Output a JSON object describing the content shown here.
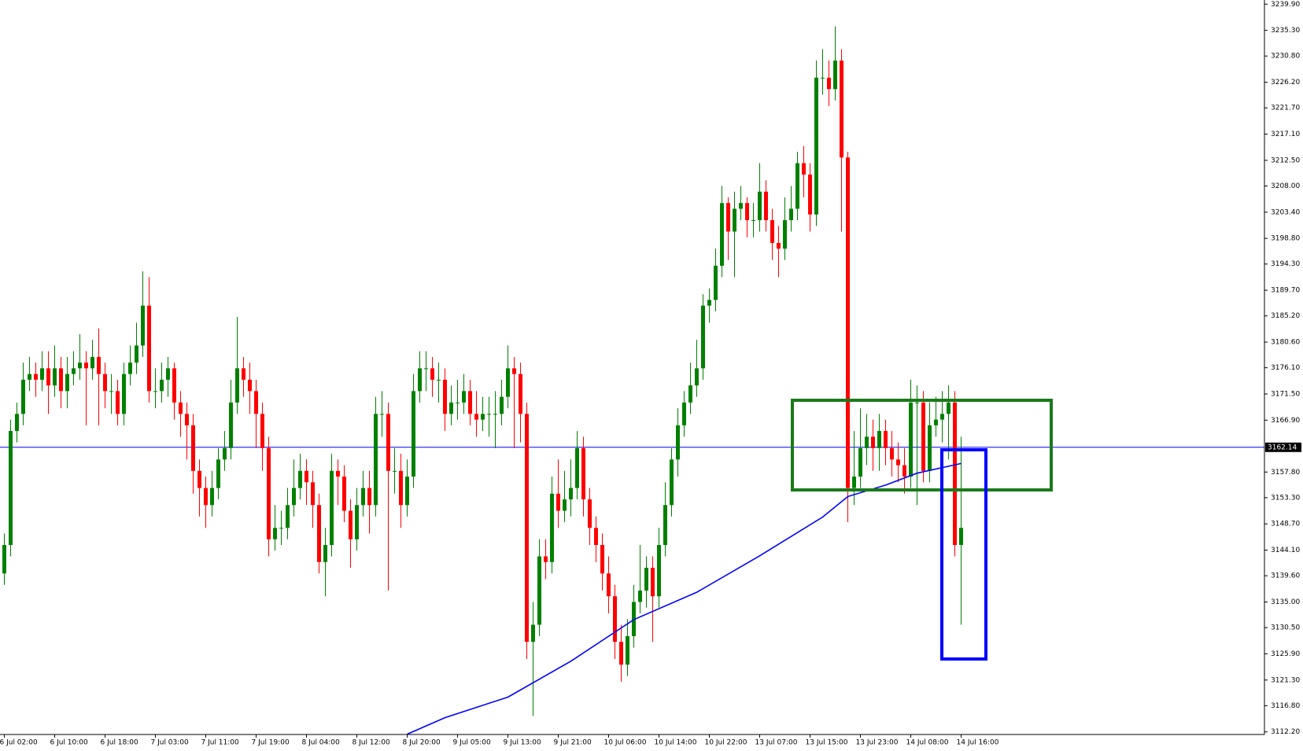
{
  "chart_data": {
    "type": "candlestick",
    "categories": [
      "6 Jul 02:00",
      null,
      null,
      null,
      null,
      null,
      null,
      null,
      "6 Jul 10:00",
      null,
      null,
      null,
      null,
      null,
      null,
      null,
      "6 Jul 18:00",
      null,
      null,
      null,
      null,
      null,
      null,
      null,
      "7 Jul 03:00",
      null,
      null,
      null,
      null,
      null,
      null,
      null,
      "7 Jul 11:00",
      null,
      null,
      null,
      null,
      null,
      null,
      null,
      "7 Jul 19:00",
      null,
      null,
      null,
      null,
      null,
      null,
      null,
      "8 Jul 04:00",
      null,
      null,
      null,
      null,
      null,
      null,
      null,
      "8 Jul 12:00",
      null,
      null,
      null,
      null,
      null,
      null,
      null,
      "8 Jul 20:00",
      null,
      null,
      null,
      null,
      null,
      null,
      null,
      "9 Jul 05:00",
      null,
      null,
      null,
      null,
      null,
      null,
      null,
      "9 Jul 13:00",
      null,
      null,
      null,
      null,
      null,
      null,
      null,
      "9 Jul 21:00",
      null,
      null,
      null,
      null,
      null,
      null,
      null,
      "10 Jul 06:00",
      null,
      null,
      null,
      null,
      null,
      null,
      null,
      "10 Jul 14:00",
      null,
      null,
      null,
      null,
      null,
      null,
      null,
      "10 Jul 22:00",
      null,
      null,
      null,
      null,
      null,
      null,
      null,
      "13 Jul 07:00",
      null,
      null,
      null,
      null,
      null,
      null,
      null,
      "13 Jul 15:00",
      null,
      null,
      null,
      null,
      null,
      null,
      null,
      "13 Jul 23:00",
      null,
      null,
      null,
      null,
      null,
      null,
      null,
      "14 Jul 08:00",
      null,
      null,
      null,
      null,
      null,
      null,
      null,
      "14 Jul 16:00"
    ],
    "open": [
      3140,
      3145,
      3165,
      3168,
      3174,
      3175,
      3174,
      3176,
      3173,
      3176,
      3172,
      3175,
      3176,
      3177,
      3176,
      3178,
      3175,
      3172,
      3172,
      3168,
      3175,
      3177,
      3180,
      3187,
      3172,
      3172,
      3174,
      3176,
      3170,
      3168,
      3166,
      3158,
      3155,
      3152,
      3155,
      3160,
      3162,
      3170,
      3176,
      3174,
      3172,
      3168,
      3162,
      3146,
      3148,
      3148,
      3152,
      3155,
      3158,
      3156,
      3152,
      3142,
      3145,
      3158,
      3157,
      3151,
      3146,
      3152,
      3155,
      3152,
      3168,
      3168,
      3158,
      3158,
      3152,
      3157,
      3172,
      3176,
      3176,
      3174,
      3174,
      3168,
      3170,
      3170,
      3172,
      3168,
      3167,
      3168,
      3168,
      3168,
      3171,
      3176,
      3175,
      3168,
      3128,
      3131,
      3143,
      3142,
      3154,
      3151,
      3153,
      3155,
      3162,
      3153,
      3148,
      3145,
      3140,
      3136,
      3128,
      3124,
      3129,
      3135,
      3137,
      3141,
      3136,
      3145,
      3152,
      3160,
      3166,
      3170,
      3173,
      3176,
      3187,
      3188,
      3194,
      3205,
      3200,
      3204,
      3205,
      3202,
      3202,
      3207,
      3202,
      3198,
      3197,
      3202,
      3204,
      3212,
      3210,
      3203,
      3227,
      3227,
      3225,
      3230,
      3213,
      3155,
      3157,
      3162,
      3164,
      3162,
      3165,
      3162,
      3160,
      3159,
      3157,
      3170,
      3170,
      3158,
      3166,
      3167,
      3168,
      3170,
      3145
    ],
    "high": [
      3147,
      3167,
      3170,
      3177,
      3178,
      3177,
      3179,
      3179,
      3180,
      3178,
      3178,
      3179,
      3182,
      3179,
      3181,
      3183,
      3177,
      3175,
      3174,
      3177,
      3180,
      3184,
      3193,
      3192,
      3176,
      3177,
      3178,
      3177,
      3172,
      3170,
      3168,
      3160,
      3157,
      3158,
      3162,
      3165,
      3174,
      3185,
      3178,
      3177,
      3174,
      3170,
      3164,
      3152,
      3151,
      3155,
      3160,
      3161,
      3160,
      3158,
      3154,
      3148,
      3161,
      3160,
      3159,
      3153,
      3155,
      3158,
      3158,
      3171,
      3172,
      3170,
      3162,
      3161,
      3160,
      3175,
      3179,
      3179,
      3178,
      3177,
      3176,
      3173,
      3174,
      3175,
      3174,
      3172,
      3171,
      3171,
      3172,
      3174,
      3180,
      3178,
      3177,
      3170,
      3135,
      3146,
      3146,
      3157,
      3160,
      3158,
      3160,
      3165,
      3164,
      3155,
      3150,
      3147,
      3143,
      3138,
      3131,
      3132,
      3138,
      3145,
      3143,
      3143,
      3148,
      3156,
      3162,
      3169,
      3172,
      3177,
      3181,
      3189,
      3190,
      3197,
      3208,
      3206,
      3207,
      3208,
      3206,
      3205,
      3212,
      3209,
      3204,
      3201,
      3206,
      3208,
      3214,
      3215,
      3212,
      3230,
      3232,
      3230,
      3236,
      3232,
      3214,
      3165,
      3169,
      3168,
      3167,
      3168,
      3167,
      3165,
      3163,
      3162,
      3174,
      3173,
      3172,
      3170,
      3171,
      3172,
      3173,
      3172,
      3164
    ],
    "low": [
      3138,
      3143,
      3163,
      3166,
      3172,
      3171,
      3172,
      3168,
      3171,
      3169,
      3169,
      3173,
      3174,
      3166,
      3174,
      3166,
      3169,
      3168,
      3166,
      3166,
      3173,
      3175,
      3178,
      3170,
      3169,
      3170,
      3171,
      3167,
      3164,
      3160,
      3154,
      3150,
      3148,
      3150,
      3153,
      3158,
      3160,
      3168,
      3171,
      3168,
      3162,
      3158,
      3143,
      3144,
      3145,
      3146,
      3150,
      3153,
      3152,
      3148,
      3140,
      3136,
      3143,
      3152,
      3149,
      3141,
      3144,
      3150,
      3147,
      3150,
      3164,
      3137,
      3154,
      3148,
      3150,
      3155,
      3170,
      3172,
      3171,
      3170,
      3165,
      3166,
      3167,
      3168,
      3166,
      3164,
      3165,
      3164,
      3162,
      3166,
      3169,
      3162,
      3163,
      3125,
      3115,
      3129,
      3139,
      3140,
      3148,
      3149,
      3150,
      3153,
      3150,
      3145,
      3142,
      3137,
      3133,
      3125,
      3121,
      3122,
      3127,
      3133,
      3134,
      3128,
      3134,
      3143,
      3150,
      3157,
      3164,
      3168,
      3171,
      3174,
      3184,
      3186,
      3192,
      3195,
      3192,
      3202,
      3199,
      3199,
      3200,
      3200,
      3195,
      3192,
      3195,
      3200,
      3202,
      3206,
      3200,
      3201,
      3224,
      3222,
      3223,
      3200,
      3149,
      3152,
      3155,
      3159,
      3158,
      3158,
      3159,
      3157,
      3156,
      3154,
      3155,
      3152,
      3156,
      3156,
      3164,
      3163,
      3160,
      3143,
      3131
    ],
    "close": [
      3145,
      3165,
      3168,
      3174,
      3175,
      3174,
      3176,
      3173,
      3176,
      3172,
      3175,
      3176,
      3177,
      3176,
      3178,
      3175,
      3172,
      3172,
      3168,
      3175,
      3177,
      3180,
      3187,
      3172,
      3172,
      3174,
      3176,
      3170,
      3168,
      3166,
      3158,
      3155,
      3152,
      3155,
      3160,
      3162,
      3170,
      3176,
      3174,
      3172,
      3168,
      3162,
      3146,
      3148,
      3148,
      3152,
      3155,
      3158,
      3156,
      3152,
      3142,
      3145,
      3158,
      3157,
      3151,
      3146,
      3152,
      3155,
      3152,
      3168,
      3168,
      3158,
      3158,
      3152,
      3157,
      3172,
      3176,
      3176,
      3174,
      3174,
      3168,
      3170,
      3170,
      3172,
      3168,
      3167,
      3168,
      3168,
      3168,
      3171,
      3176,
      3175,
      3168,
      3128,
      3131,
      3143,
      3142,
      3154,
      3151,
      3153,
      3155,
      3162,
      3153,
      3148,
      3145,
      3140,
      3136,
      3128,
      3124,
      3129,
      3135,
      3137,
      3141,
      3136,
      3145,
      3152,
      3160,
      3166,
      3170,
      3173,
      3176,
      3187,
      3188,
      3194,
      3205,
      3200,
      3204,
      3205,
      3202,
      3202,
      3207,
      3202,
      3198,
      3197,
      3202,
      3204,
      3212,
      3210,
      3203,
      3227,
      3227,
      3225,
      3230,
      3213,
      3155,
      3157,
      3162,
      3164,
      3162,
      3165,
      3162,
      3160,
      3159,
      3157,
      3170,
      3170,
      3158,
      3166,
      3167,
      3168,
      3170,
      3145,
      3148
    ],
    "up_color": "#008000",
    "down_color": "#ff0000",
    "ma": {
      "x": [
        64,
        70,
        80,
        90,
        100,
        110,
        120,
        130,
        134,
        140,
        145,
        152
      ],
      "values": [
        3111.8,
        3114.7,
        3118.3,
        3124.6,
        3131.9,
        3136.7,
        3143.1,
        3149.9,
        3153.5,
        3155.5,
        3157.6,
        3159.3
      ],
      "color": "#0000ff"
    },
    "hline": {
      "value": 3162.14,
      "color": "#0000ff"
    },
    "ylim": [
      3112.2,
      3239.9
    ],
    "yticks": [
      {
        "value": 3112.2,
        "label": "3112.20"
      },
      {
        "value": 3116.8,
        "label": "3116.80"
      },
      {
        "value": 3121.3,
        "label": "3121.30"
      },
      {
        "value": 3125.9,
        "label": "3125.90"
      },
      {
        "value": 3130.5,
        "label": "3130.50"
      },
      {
        "value": 3135.0,
        "label": "3135.00"
      },
      {
        "value": 3139.6,
        "label": "3139.60"
      },
      {
        "value": 3144.1,
        "label": "3144.10"
      },
      {
        "value": 3148.7,
        "label": "3148.70"
      },
      {
        "value": 3153.3,
        "label": "3153.30"
      },
      {
        "value": 3157.8,
        "label": "3157.80"
      },
      {
        "value": 3166.9,
        "label": "3166.90"
      },
      {
        "value": 3171.5,
        "label": "3171.50"
      },
      {
        "value": 3176.1,
        "label": "3176.10"
      },
      {
        "value": 3180.6,
        "label": "3180.60"
      },
      {
        "value": 3185.2,
        "label": "3185.20"
      },
      {
        "value": 3189.7,
        "label": "3189.70"
      },
      {
        "value": 3194.3,
        "label": "3194.30"
      },
      {
        "value": 3198.8,
        "label": "3198.80"
      },
      {
        "value": 3203.4,
        "label": "3203.40"
      },
      {
        "value": 3208.0,
        "label": "3208.00"
      },
      {
        "value": 3212.5,
        "label": "3212.50"
      },
      {
        "value": 3217.1,
        "label": "3217.10"
      },
      {
        "value": 3221.7,
        "label": "3221.70"
      },
      {
        "value": 3226.2,
        "label": "3226.20"
      },
      {
        "value": 3230.8,
        "label": "3230.80"
      },
      {
        "value": 3235.3,
        "label": "3235.30"
      },
      {
        "value": 3239.9,
        "label": "3239.90"
      }
    ]
  }
}
